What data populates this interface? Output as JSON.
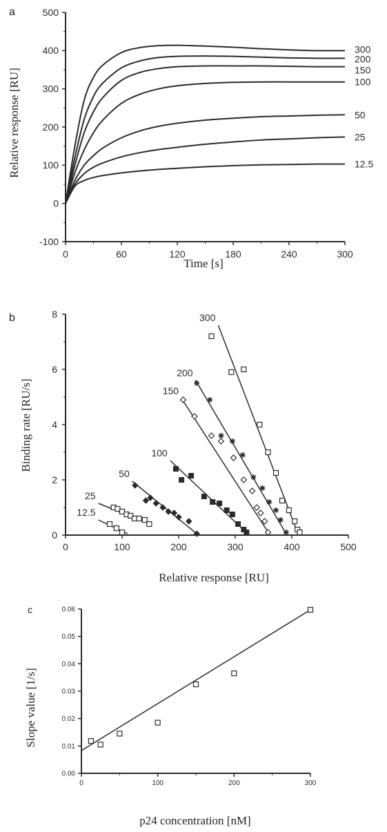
{
  "chart_data": [
    {
      "panel": "a",
      "type": "line",
      "xlabel": "Time [s]",
      "ylabel": "Relative response [RU]",
      "xlim": [
        0,
        300
      ],
      "ylim": [
        -100,
        500
      ],
      "xticks": [
        0,
        60,
        120,
        180,
        240,
        300
      ],
      "yticks": [
        -100,
        0,
        100,
        200,
        300,
        400,
        500
      ],
      "grid": false,
      "series": [
        {
          "name": "300",
          "x": [
            0,
            10,
            20,
            30,
            40,
            60,
            80,
            100,
            120,
            150,
            180,
            210,
            240,
            270,
            300
          ],
          "y": [
            0,
            150,
            270,
            330,
            362,
            395,
            408,
            413,
            414,
            412,
            409,
            405,
            402,
            400,
            400
          ]
        },
        {
          "name": "200",
          "x": [
            0,
            10,
            20,
            30,
            40,
            60,
            80,
            100,
            120,
            150,
            180,
            210,
            240,
            270,
            300
          ],
          "y": [
            0,
            120,
            220,
            280,
            315,
            355,
            373,
            382,
            385,
            386,
            385,
            383,
            381,
            380,
            380
          ]
        },
        {
          "name": "150",
          "x": [
            0,
            10,
            20,
            30,
            40,
            60,
            80,
            100,
            120,
            150,
            180,
            210,
            240,
            270,
            300
          ],
          "y": [
            0,
            100,
            185,
            240,
            277,
            322,
            343,
            353,
            358,
            360,
            360,
            360,
            359,
            358,
            358
          ]
        },
        {
          "name": "100",
          "x": [
            0,
            10,
            20,
            30,
            40,
            60,
            80,
            100,
            120,
            150,
            180,
            210,
            240,
            270,
            300
          ],
          "y": [
            0,
            80,
            140,
            185,
            218,
            262,
            286,
            300,
            308,
            314,
            317,
            318,
            318,
            318,
            318
          ]
        },
        {
          "name": "50",
          "x": [
            0,
            10,
            20,
            30,
            40,
            60,
            80,
            100,
            120,
            150,
            180,
            210,
            240,
            270,
            300
          ],
          "y": [
            0,
            60,
            100,
            125,
            145,
            172,
            190,
            202,
            210,
            218,
            223,
            227,
            229,
            231,
            232
          ]
        },
        {
          "name": "25",
          "x": [
            0,
            10,
            20,
            30,
            40,
            60,
            80,
            100,
            120,
            150,
            180,
            210,
            240,
            270,
            300
          ],
          "y": [
            0,
            50,
            78,
            95,
            106,
            122,
            133,
            141,
            147,
            155,
            161,
            166,
            169,
            172,
            174
          ]
        },
        {
          "name": "12.5",
          "x": [
            0,
            10,
            20,
            30,
            40,
            60,
            80,
            100,
            120,
            150,
            180,
            210,
            240,
            270,
            300
          ],
          "y": [
            0,
            45,
            60,
            68,
            73,
            80,
            85,
            89,
            92,
            96,
            99,
            101,
            102,
            103,
            103
          ]
        }
      ]
    },
    {
      "panel": "b",
      "type": "scatter",
      "xlabel": "Relative response [RU]",
      "ylabel": "Binding rate [RU/s]",
      "xlim": [
        0,
        500
      ],
      "ylim": [
        0,
        8
      ],
      "xticks": [
        0,
        100,
        200,
        300,
        400,
        500
      ],
      "yticks": [
        0,
        2,
        4,
        6,
        8
      ],
      "grid": false,
      "series": [
        {
          "name": "300",
          "marker": "open-square",
          "line": [
            [
              270,
              7.6
            ],
            [
              410,
              0.1
            ]
          ],
          "points": [
            [
              258,
              7.2
            ],
            [
              293,
              5.9
            ],
            [
              315,
              6.0
            ],
            [
              343,
              4.0
            ],
            [
              358,
              3.0
            ],
            [
              372,
              2.25
            ],
            [
              383,
              1.25
            ],
            [
              395,
              0.9
            ],
            [
              405,
              0.5
            ],
            [
              410,
              0.2
            ],
            [
              414,
              0.1
            ]
          ]
        },
        {
          "name": "200",
          "marker": "star",
          "line": [
            [
              230,
              5.6
            ],
            [
              390,
              0.05
            ]
          ],
          "points": [
            [
              232,
              5.5
            ],
            [
              255,
              4.9
            ],
            [
              275,
              3.6
            ],
            [
              295,
              3.4
            ],
            [
              313,
              2.9
            ],
            [
              332,
              2.1
            ],
            [
              348,
              1.7
            ],
            [
              360,
              1.2
            ],
            [
              372,
              0.9
            ],
            [
              380,
              0.55
            ],
            [
              390,
              0.1
            ]
          ]
        },
        {
          "name": "150",
          "marker": "open-diamond",
          "line": [
            [
              205,
              4.95
            ],
            [
              360,
              0.05
            ]
          ],
          "points": [
            [
              208,
              4.9
            ],
            [
              228,
              4.3
            ],
            [
              258,
              3.6
            ],
            [
              275,
              3.4
            ],
            [
              297,
              2.8
            ],
            [
              315,
              2.0
            ],
            [
              330,
              1.6
            ],
            [
              338,
              1.0
            ],
            [
              345,
              0.8
            ],
            [
              352,
              0.5
            ],
            [
              358,
              0.1
            ]
          ]
        },
        {
          "name": "100",
          "marker": "filled-square",
          "line": [
            [
              185,
              2.7
            ],
            [
              322,
              0.05
            ]
          ],
          "points": [
            [
              195,
              2.4
            ],
            [
              205,
              2.0
            ],
            [
              222,
              2.15
            ],
            [
              245,
              1.4
            ],
            [
              260,
              1.2
            ],
            [
              272,
              1.15
            ],
            [
              285,
              0.9
            ],
            [
              295,
              0.75
            ],
            [
              305,
              0.4
            ],
            [
              315,
              0.2
            ],
            [
              320,
              0.1
            ]
          ]
        },
        {
          "name": "50",
          "marker": "filled-diamond",
          "line": [
            [
              118,
              1.95
            ],
            [
              232,
              0.05
            ]
          ],
          "points": [
            [
              123,
              1.8
            ],
            [
              142,
              1.25
            ],
            [
              150,
              1.35
            ],
            [
              160,
              1.15
            ],
            [
              172,
              1.0
            ],
            [
              182,
              0.85
            ],
            [
              192,
              0.8
            ],
            [
              200,
              0.65
            ],
            [
              218,
              0.5
            ],
            [
              232,
              0.05
            ]
          ]
        },
        {
          "name": "25",
          "marker": "open-square",
          "line": [
            [
              58,
              1.15
            ],
            [
              150,
              0.4
            ]
          ],
          "points": [
            [
              85,
              1.0
            ],
            [
              92,
              0.95
            ],
            [
              100,
              0.85
            ],
            [
              108,
              0.75
            ],
            [
              115,
              0.7
            ],
            [
              122,
              0.6
            ],
            [
              130,
              0.6
            ],
            [
              140,
              0.55
            ],
            [
              148,
              0.4
            ]
          ]
        },
        {
          "name": "12.5",
          "marker": "open-square",
          "line": [
            [
              58,
              0.55
            ],
            [
              110,
              0.05
            ]
          ],
          "points": [
            [
              78,
              0.4
            ],
            [
              90,
              0.25
            ],
            [
              100,
              0.1
            ]
          ]
        }
      ]
    },
    {
      "panel": "c",
      "type": "scatter",
      "xlabel": "p24 concentration [nM]",
      "ylabel": "Slope value [1/s]",
      "xlim": [
        0,
        300
      ],
      "ylim": [
        0.0,
        0.06
      ],
      "xticks": [
        0,
        100,
        200,
        300
      ],
      "yticks": [
        "0.00",
        "0.01",
        "0.02",
        "0.03",
        "0.04",
        "0.05",
        "0.06"
      ],
      "grid": false,
      "marker": "open-square",
      "x": [
        12.5,
        25,
        50,
        100,
        150,
        200,
        300
      ],
      "y": [
        0.0118,
        0.0105,
        0.0145,
        0.0185,
        0.0325,
        0.0365,
        0.0597
      ],
      "fit_line": [
        [
          0,
          0.0083
        ],
        [
          300,
          0.0597
        ]
      ]
    }
  ]
}
